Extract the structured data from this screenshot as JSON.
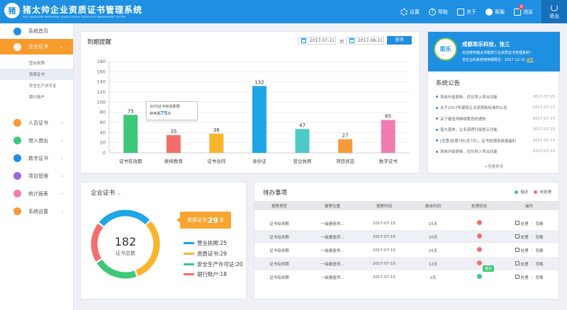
{
  "header": {
    "brand": "猪太帅企业资质证书管理系统",
    "brand_sub": "PIGS HANDSOME ENTERPRISE QUALIFICATION CERTIFICATE MANAGEMENT SYSTEM",
    "settings": "设置",
    "help": "帮助",
    "about": "关于",
    "service": "客服",
    "messages": "消息",
    "message_count": "8",
    "logout": "退出"
  },
  "sidebar": {
    "home": "系统首页",
    "enterprise_cert": "企业证书",
    "sub_items": [
      "营业执照",
      "资质证书",
      "安全生产许可证",
      "银行账户"
    ],
    "personnel_cert": "人员证书",
    "borrow": "借入借出",
    "digital_cert": "数字证书",
    "project": "项目管理",
    "stats": "统计报表",
    "settings": "系统设置"
  },
  "expiry": {
    "title": "到期提醒",
    "date_from": "2017-07-11",
    "to": "到",
    "date_to": "2017-08-11",
    "query": "查询",
    "tooltip_line1": "30内证书有效期限",
    "tooltip_prefix": "种到期",
    "tooltip_value": "75",
    "tooltip_suffix": "本"
  },
  "chart_data": {
    "type": "bar",
    "categories": [
      "证书有效期",
      "继续教育",
      "证书合同",
      "身份证",
      "营业执照",
      "项目状态",
      "数字证书"
    ],
    "values": [
      75,
      35,
      38,
      132,
      47,
      27,
      65
    ],
    "colors": [
      "#3ec87a",
      "#f36f6f",
      "#f7b52c",
      "#1ea6e6",
      "#4fc9c5",
      "#f79a3a",
      "#f07cb0"
    ],
    "yticks": [
      0,
      20,
      40,
      60,
      80,
      100,
      120,
      140,
      160,
      180
    ],
    "ylim": [
      0,
      180
    ],
    "grid": true
  },
  "notice": {
    "company": "成都思乐科技，张三",
    "welcome": "欢迎使用猪太帅建筑行业资质证书管理系统！",
    "expire_label": "您企业的系统使用期限至：",
    "expire_date": "2017-12-31",
    "renew": "续费",
    "logo_text": "思乐",
    "title": "系统公告",
    "items": [
      {
        "text": "系统升级更新，优化导入导出功能",
        "date": "2017-07-15"
      },
      {
        "text": "关于2017年建筑企业资质新标准的公告",
        "date": "2017-07-15"
      },
      {
        "text": "关于建造师继续教育的通知",
        "date": "2017-07-15"
      },
      {
        "text": "普大喜奔，企业资质升级提示功能",
        "date": "2017-07-15"
      },
      {
        "text": "[优惠]优惠7折(至7月)，证书管理系统速福利",
        "date": "2017-07-15"
      },
      {
        "text": "系统升级更新，优化导入导出功能",
        "date": "2017-07-15"
      }
    ],
    "more": "+查看更多"
  },
  "cert": {
    "title": "企业证书",
    "total": "182",
    "total_label": "证书总数",
    "highlight_label": "资质证书",
    "highlight_value": "29",
    "highlight_unit": "本",
    "legend": [
      {
        "label": "营业执照:",
        "value": "25",
        "color": "#1ea6e6"
      },
      {
        "label": "资质证书:",
        "value": "29",
        "color": "#f7b52c"
      },
      {
        "label": "安全生产许可证:",
        "value": "20",
        "color": "#3ec87a"
      },
      {
        "label": "银行账户:",
        "value": "18",
        "color": "#f36f6f"
      }
    ]
  },
  "todo": {
    "title": "待办事项",
    "legend_handled": "催办",
    "legend_unhandled": "未处理",
    "headers": [
      "报警类型",
      "报警位置",
      "报警时间",
      "剩余时间",
      "处理状态",
      "操作"
    ],
    "rows": [
      {
        "type": "证书有效期",
        "pos": "一级建造师...",
        "time": "2017-07-15",
        "remain": "15天",
        "status": "未处理"
      },
      {
        "type": "证书有效期",
        "pos": "一级建造师...",
        "time": "2017-07-15",
        "remain": "10天",
        "status": "未处理"
      },
      {
        "type": "证书有效期",
        "pos": "一级建造师...",
        "time": "2017-07-15",
        "remain": "25天",
        "status": "未处理"
      },
      {
        "type": "证书有效期",
        "pos": "一级建造师...",
        "time": "2017-07-15",
        "remain": "12天",
        "status": "未处理"
      },
      {
        "type": "证书有效期",
        "pos": "一级建造师...",
        "time": "2017-07-15",
        "remain": "2天",
        "status": "催办"
      }
    ],
    "handle": "处理",
    "ignore": "忽略",
    "status_tip": "催办",
    "colors": {
      "handled": "#3ec87a",
      "unhandled": "#f36f6f"
    }
  }
}
